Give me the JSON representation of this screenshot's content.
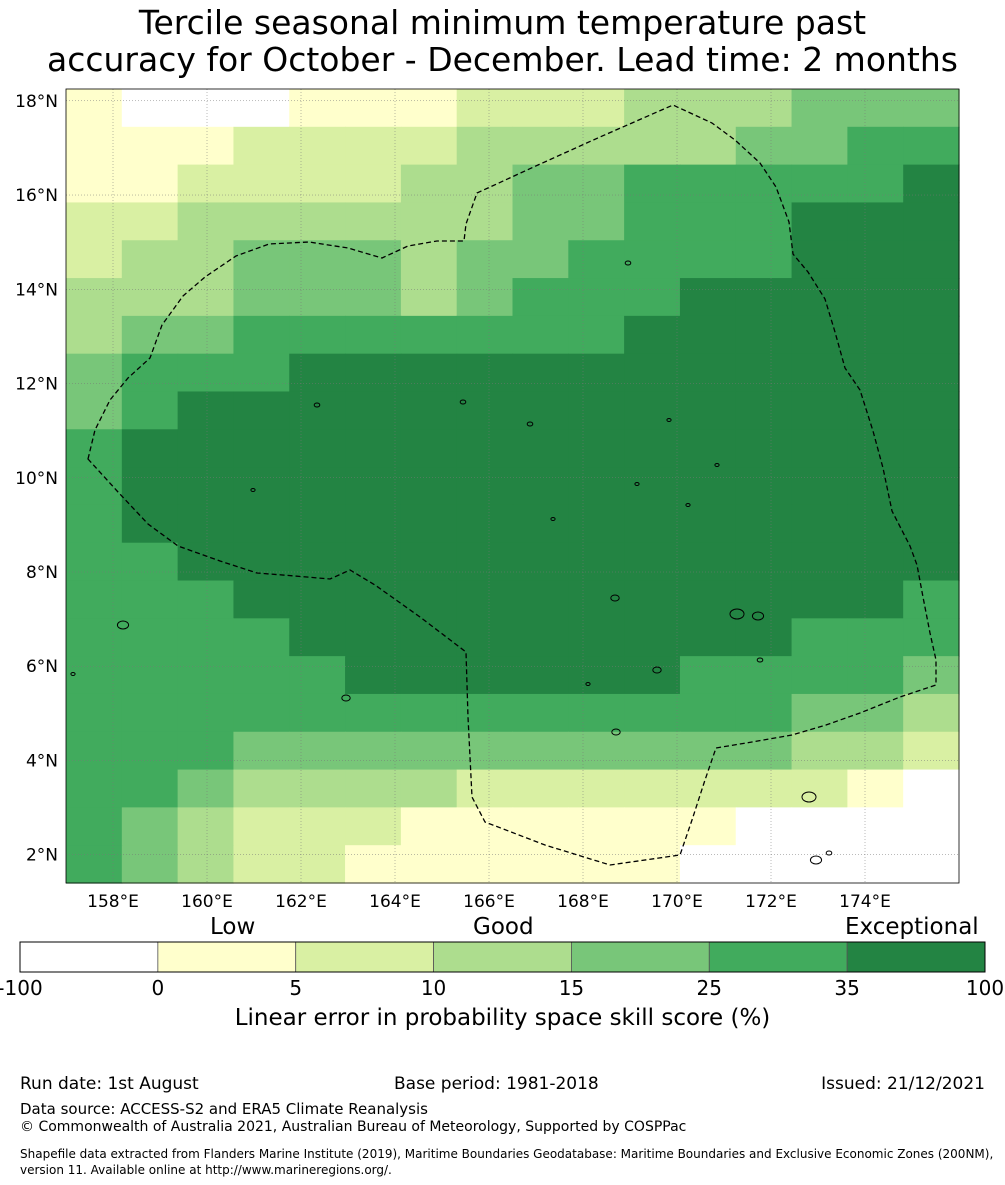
{
  "title_line1": "Tercile seasonal minimum temperature past",
  "title_line2": "accuracy for October - December. Lead time: 2 months",
  "map": {
    "lon_range": [
      157,
      176
    ],
    "lat_range": [
      1.4,
      18.25
    ],
    "lon_ticks": [
      "158°E",
      "160°E",
      "162°E",
      "164°E",
      "166°E",
      "168°E",
      "170°E",
      "172°E",
      "174°E"
    ],
    "lat_ticks": [
      "2°N",
      "4°N",
      "6°N",
      "8°N",
      "10°N",
      "12°N",
      "14°N",
      "16°N",
      "18°N"
    ],
    "gridlines": true,
    "eez_boundary": "dashed black outline",
    "coastlines": "small black island outlines"
  },
  "colorbar": {
    "category_labels": [
      "Low",
      "Good",
      "Exceptional"
    ],
    "bounds": [
      "-100",
      "0",
      "5",
      "10",
      "15",
      "25",
      "35",
      "100"
    ],
    "colors": [
      "#ffffff",
      "#ffffcc",
      "#d9f0a3",
      "#addd8e",
      "#78c679",
      "#41ab5d",
      "#238443"
    ],
    "xlabel": "Linear error in probability space skill score (%)"
  },
  "footer": {
    "run_date": "Run date: 1st August",
    "base_period": "Base period: 1981-2018",
    "issued": "Issued: 21/12/2021",
    "data_source": "Data source: ACCESS-S2 and ERA5 Climate Reanalysis",
    "copyright": "© Commonwealth of Australia 2021, Australian Bureau of Meteorology, Supported by COSPPac",
    "shapefile": "Shapefile data extracted from Flanders Marine Institute (2019), Maritime Boundaries Geodatabase: Maritime Boundaries and Exclusive Economic Zones (200NM), version 11. Available online at http://www.marineregions.org/."
  }
}
